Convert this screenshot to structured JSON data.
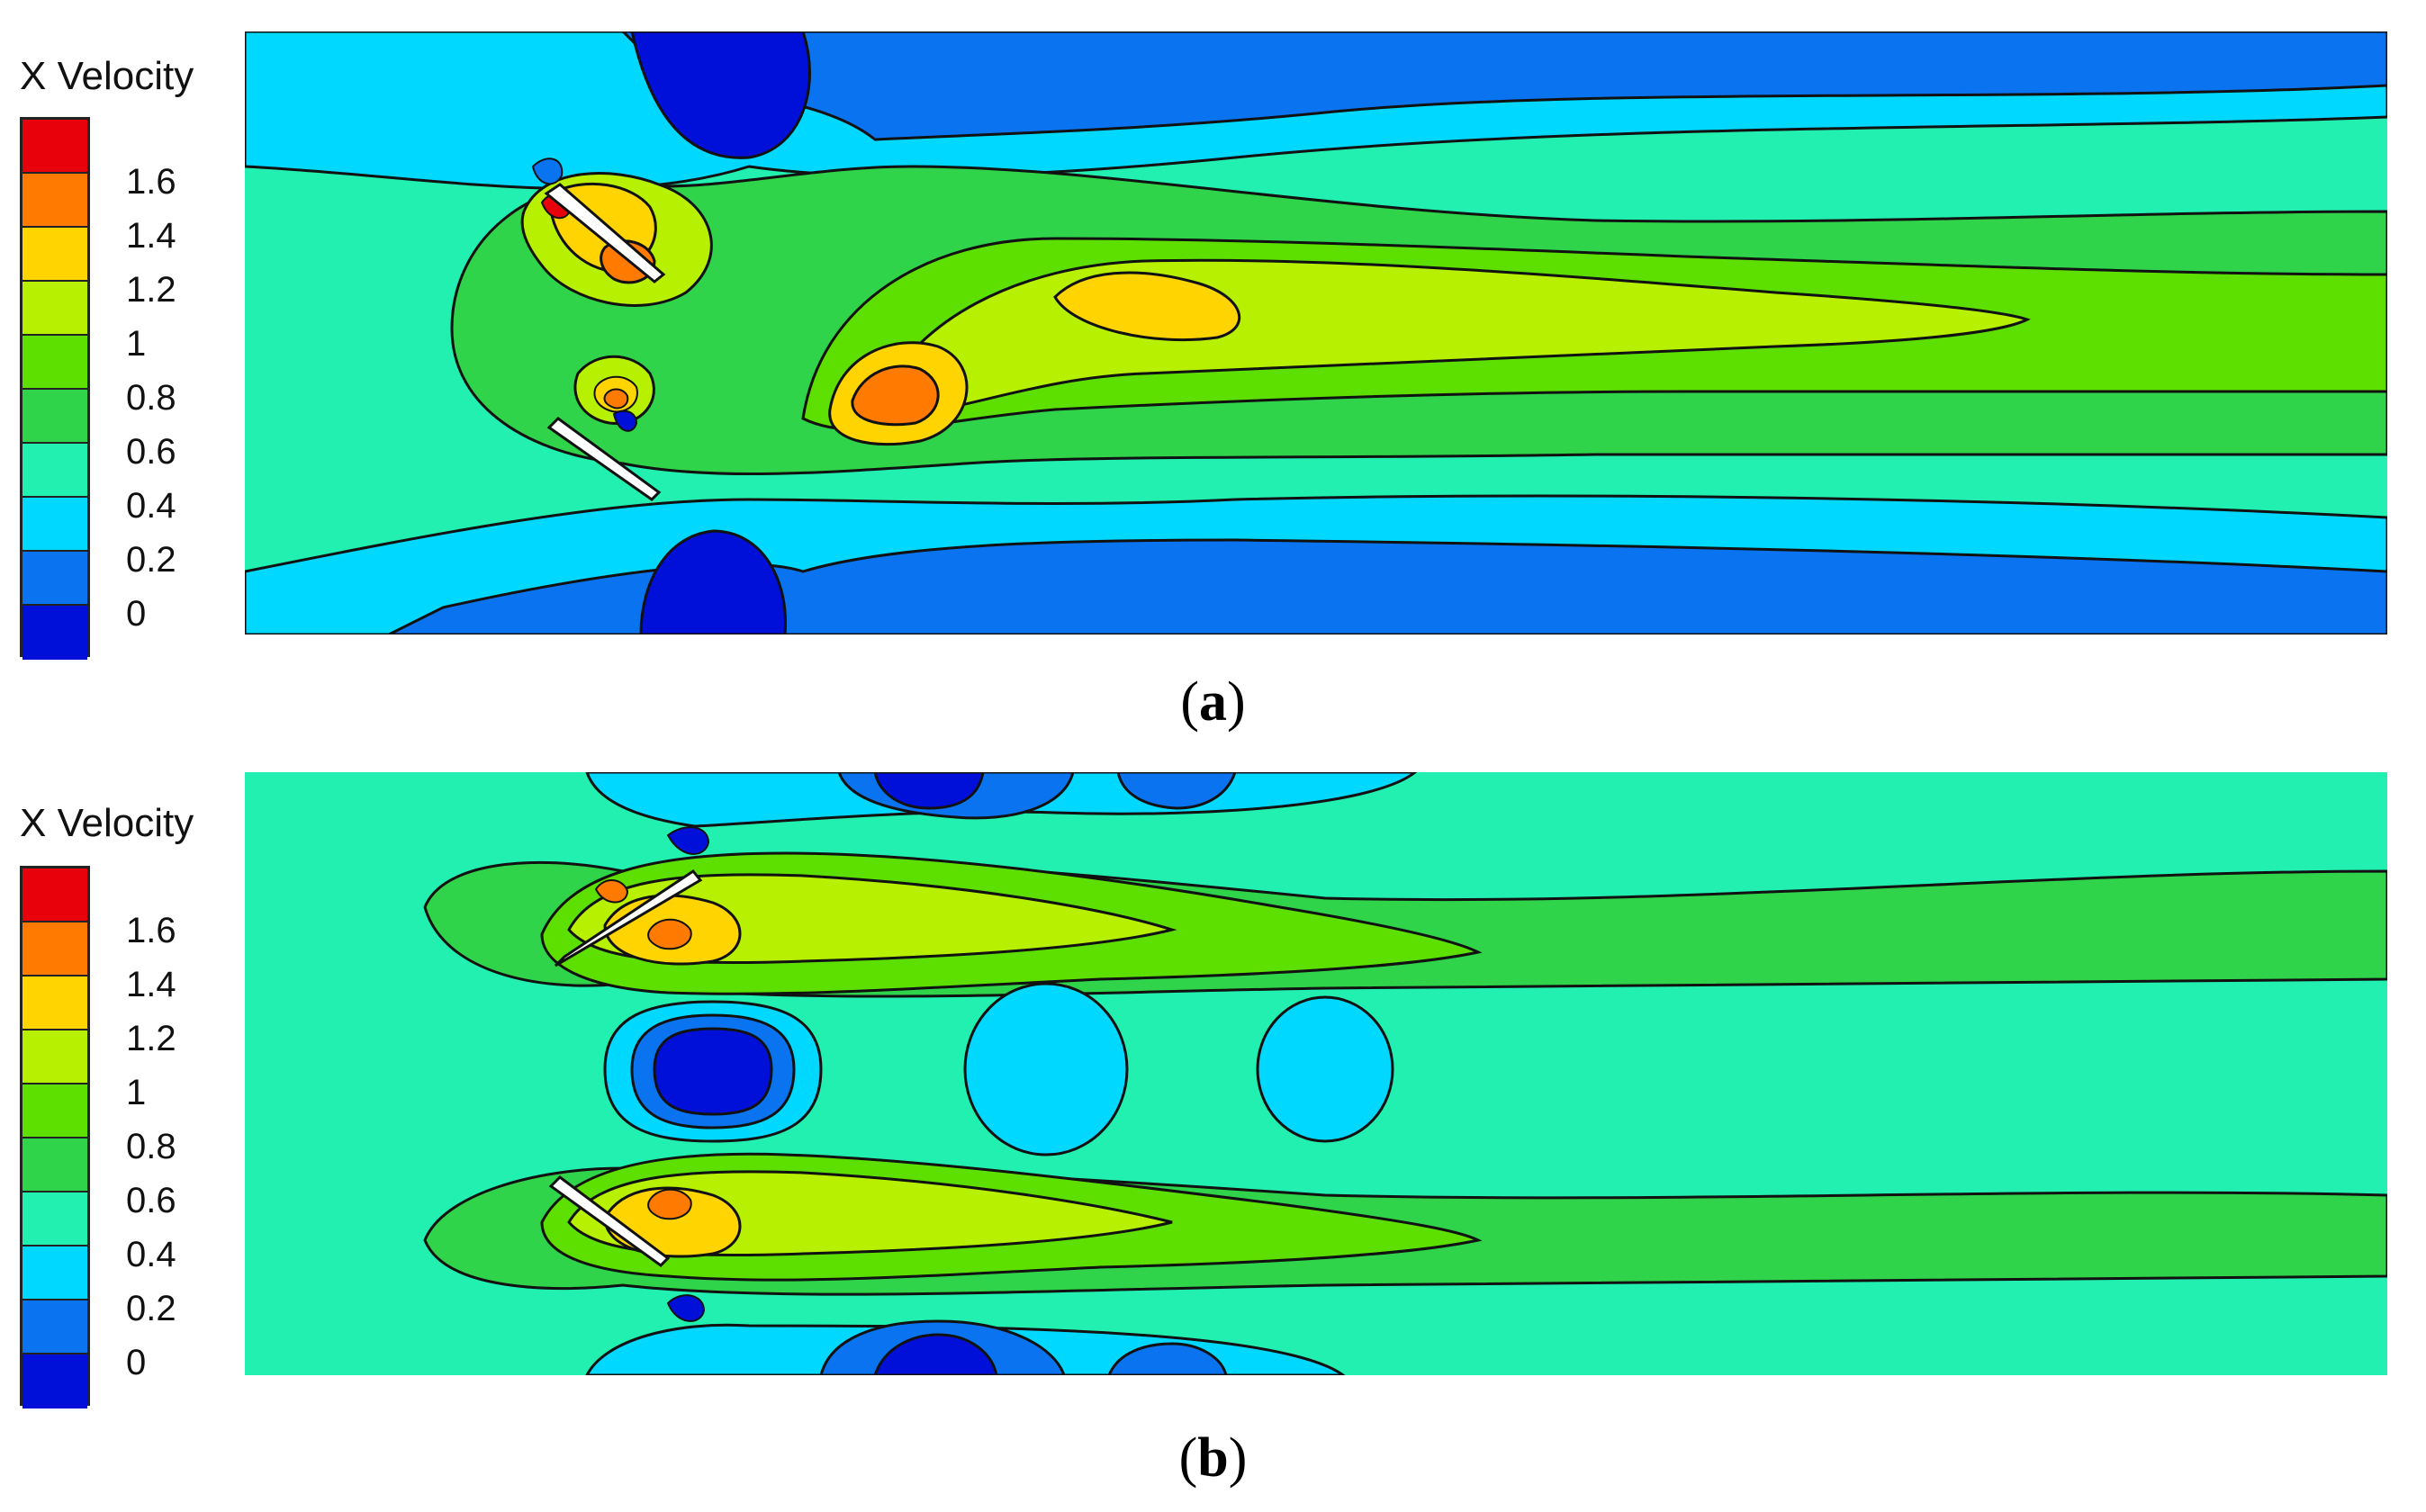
{
  "chart_data": [
    {
      "type": "heatmap",
      "panel": "(a)",
      "caption_letter": "a",
      "legend_title": "X Velocity",
      "legend_levels": [
        "1.6",
        "1.4",
        "1.2",
        "1",
        "0.8",
        "0.6",
        "0.4",
        "0.2",
        "0"
      ],
      "colorscale": [
        "#e8000b",
        "#ff7a00",
        "#ffd400",
        "#b7f000",
        "#5de000",
        "#2fd44a",
        "#22f0b0",
        "#00d8ff",
        "#0a74f0",
        "#0010d8"
      ],
      "value_range": [
        0,
        1.8
      ]
    },
    {
      "type": "heatmap",
      "panel": "(b)",
      "caption_letter": "b",
      "legend_title": "X Velocity",
      "legend_levels": [
        "1.6",
        "1.4",
        "1.2",
        "1",
        "0.8",
        "0.6",
        "0.4",
        "0.2",
        "0"
      ],
      "colorscale": [
        "#e8000b",
        "#ff7a00",
        "#ffd400",
        "#b7f000",
        "#5de000",
        "#2fd44a",
        "#22f0b0",
        "#00d8ff",
        "#0a74f0",
        "#0010d8"
      ],
      "value_range": [
        0,
        1.8
      ]
    }
  ]
}
